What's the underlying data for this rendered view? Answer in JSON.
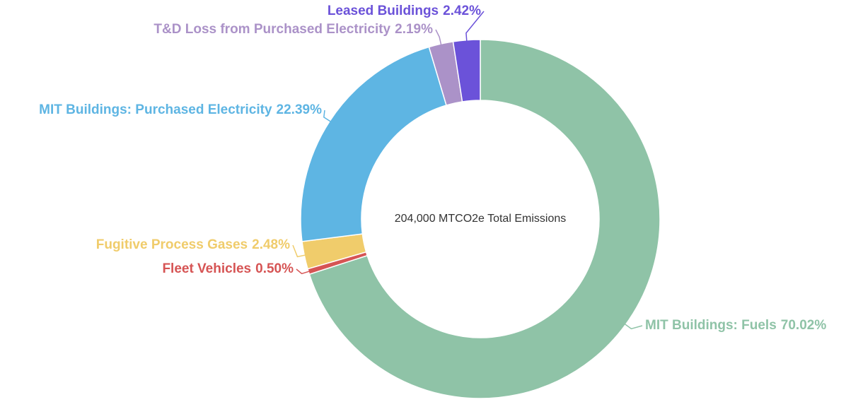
{
  "chart_data": {
    "type": "donut",
    "annotation": "204,000 MTCO2e Total Emissions",
    "categories": [
      "MIT Buildings: Fuels",
      "Fleet Vehicles",
      "Fugitive Process Gases",
      "MIT Buildings: Purchased Electricity",
      "T&D Loss from Purchased Electricity",
      "Leased Buildings"
    ],
    "values": [
      70.02,
      0.5,
      2.48,
      22.39,
      2.19,
      2.42
    ],
    "value_labels": [
      "70.02%",
      "0.50%",
      "2.48%",
      "22.39%",
      "2.19%",
      "2.42%"
    ],
    "colors": [
      "#8fc3a7",
      "#d65454",
      "#f0cc6b",
      "#5eb5e3",
      "#ab92c8",
      "#6b52d9"
    ]
  }
}
